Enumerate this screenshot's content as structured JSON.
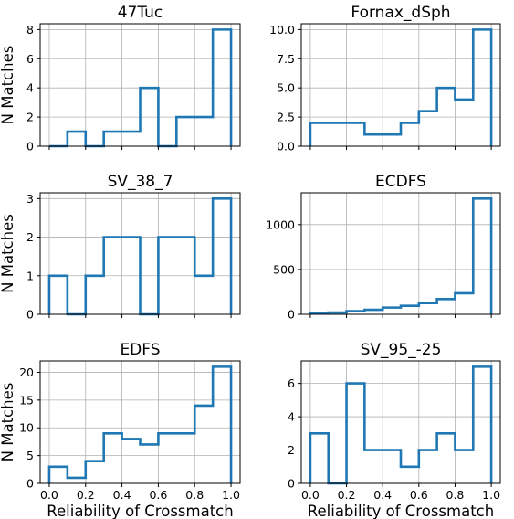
{
  "figure": {
    "xlabel": "Reliability of Crossmatch",
    "ylabel": "N Matches",
    "line_color": "#1f77b4"
  },
  "chart_data": [
    {
      "type": "histogram",
      "title": "47Tuc",
      "bin_edges": [
        0,
        0.1,
        0.2,
        0.3,
        0.4,
        0.5,
        0.6,
        0.7,
        0.8,
        0.9,
        1.0
      ],
      "values": [
        0,
        1,
        0,
        1,
        1,
        4,
        0,
        2,
        2,
        8
      ],
      "xlim": [
        -0.05,
        1.05
      ],
      "ylim": [
        0,
        8.4
      ],
      "xticks": [
        0.0,
        0.2,
        0.4,
        0.6,
        0.8,
        1.0
      ],
      "yticks": [
        0,
        2,
        4,
        6,
        8
      ],
      "yticklabels": [
        "0",
        "2",
        "4",
        "6",
        "8"
      ],
      "show_xticklabels": false,
      "show_ylabel": true,
      "show_xlabel": false,
      "grid": true
    },
    {
      "type": "histogram",
      "title": "Fornax_dSph",
      "bin_edges": [
        0,
        0.1,
        0.2,
        0.3,
        0.4,
        0.5,
        0.6,
        0.7,
        0.8,
        0.9,
        1.0
      ],
      "values": [
        2,
        2,
        2,
        1,
        1,
        2,
        3,
        5,
        4,
        10
      ],
      "xlim": [
        -0.05,
        1.05
      ],
      "ylim": [
        0,
        10.5
      ],
      "xticks": [
        0.0,
        0.2,
        0.4,
        0.6,
        0.8,
        1.0
      ],
      "yticks": [
        0,
        2.5,
        5,
        7.5,
        10
      ],
      "yticklabels": [
        "0.0",
        "2.5",
        "5.0",
        "7.5",
        "10.0"
      ],
      "show_xticklabels": false,
      "show_ylabel": false,
      "show_xlabel": false,
      "grid": true
    },
    {
      "type": "histogram",
      "title": "SV_38_7",
      "bin_edges": [
        0,
        0.1,
        0.2,
        0.3,
        0.4,
        0.5,
        0.6,
        0.7,
        0.8,
        0.9,
        1.0
      ],
      "values": [
        1,
        0,
        1,
        2,
        2,
        0,
        2,
        2,
        1,
        3
      ],
      "xlim": [
        -0.05,
        1.05
      ],
      "ylim": [
        0,
        3.15
      ],
      "xticks": [
        0.0,
        0.2,
        0.4,
        0.6,
        0.8,
        1.0
      ],
      "yticks": [
        0,
        1,
        2,
        3
      ],
      "yticklabels": [
        "0",
        "1",
        "2",
        "3"
      ],
      "show_xticklabels": false,
      "show_ylabel": true,
      "show_xlabel": false,
      "grid": true
    },
    {
      "type": "histogram",
      "title": "ECDFS",
      "bin_edges": [
        0,
        0.1,
        0.2,
        0.3,
        0.4,
        0.5,
        0.6,
        0.7,
        0.8,
        0.9,
        1.0
      ],
      "values": [
        10,
        20,
        35,
        50,
        75,
        95,
        125,
        170,
        235,
        1290
      ],
      "xlim": [
        -0.05,
        1.05
      ],
      "ylim": [
        0,
        1354.5
      ],
      "xticks": [
        0.0,
        0.2,
        0.4,
        0.6,
        0.8,
        1.0
      ],
      "yticks": [
        0,
        500,
        1000
      ],
      "yticklabels": [
        "0",
        "500",
        "1000"
      ],
      "show_xticklabels": false,
      "show_ylabel": false,
      "show_xlabel": false,
      "grid": true
    },
    {
      "type": "histogram",
      "title": "EDFS",
      "bin_edges": [
        0,
        0.1,
        0.2,
        0.3,
        0.4,
        0.5,
        0.6,
        0.7,
        0.8,
        0.9,
        1.0
      ],
      "values": [
        3,
        1,
        4,
        9,
        8,
        7,
        9,
        9,
        14,
        21
      ],
      "xlim": [
        -0.05,
        1.05
      ],
      "ylim": [
        0,
        22.05
      ],
      "xticks": [
        0.0,
        0.2,
        0.4,
        0.6,
        0.8,
        1.0
      ],
      "xticklabels": [
        "0.0",
        "0.2",
        "0.4",
        "0.6",
        "0.8",
        "1.0"
      ],
      "yticks": [
        0,
        5,
        10,
        15,
        20
      ],
      "yticklabels": [
        "0",
        "5",
        "10",
        "15",
        "20"
      ],
      "show_xticklabels": true,
      "show_ylabel": true,
      "show_xlabel": true,
      "grid": true
    },
    {
      "type": "histogram",
      "title": "SV_95_-25",
      "bin_edges": [
        0,
        0.1,
        0.2,
        0.3,
        0.4,
        0.5,
        0.6,
        0.7,
        0.8,
        0.9,
        1.0
      ],
      "values": [
        3,
        0,
        6,
        2,
        2,
        1,
        2,
        3,
        2,
        7
      ],
      "xlim": [
        -0.05,
        1.05
      ],
      "ylim": [
        0,
        7.35
      ],
      "xticks": [
        0.0,
        0.2,
        0.4,
        0.6,
        0.8,
        1.0
      ],
      "xticklabels": [
        "0.0",
        "0.2",
        "0.4",
        "0.6",
        "0.8",
        "1.0"
      ],
      "yticks": [
        0,
        2,
        4,
        6
      ],
      "yticklabels": [
        "0",
        "2",
        "4",
        "6"
      ],
      "show_xticklabels": true,
      "show_ylabel": false,
      "show_xlabel": true,
      "grid": true
    }
  ]
}
